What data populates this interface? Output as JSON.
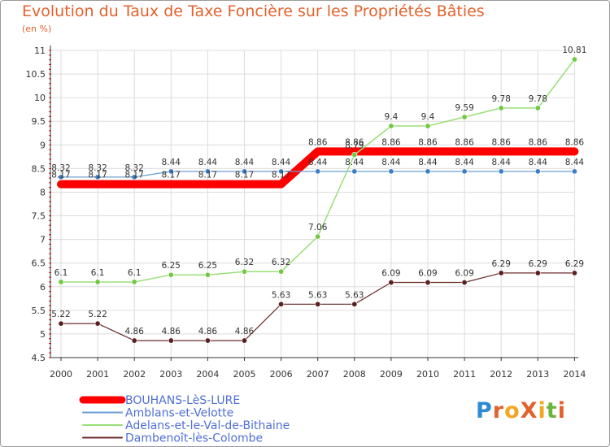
{
  "title": "Evolution du Taux de Taxe Foncière sur les Propriétés Bâties",
  "subtitle": "(en %)",
  "logo": {
    "text": "ProXiti",
    "letter_colors": [
      "#2d8bd1",
      "#e2622d",
      "#f2a622",
      "#e2622d",
      "#f2a622",
      "#6cb33f",
      "#e2622d"
    ]
  },
  "colors": {
    "title": "#e2622d",
    "axis": "#333333",
    "grid": "#dcdcdc",
    "tick_red": "#ff0000",
    "label": "#333333"
  },
  "chart_data": {
    "type": "line",
    "title": "Evolution du Taux de Taxe Foncière sur les Propriétés Bâties",
    "ylabel": "(en %)",
    "x": [
      "2000",
      "2001",
      "2002",
      "2003",
      "2004",
      "2005",
      "2006",
      "2007",
      "2008",
      "2009",
      "2010",
      "2011",
      "2012",
      "2013",
      "2014"
    ],
    "ylim": [
      4.5,
      11
    ],
    "yticks": [
      4.5,
      5,
      5.5,
      6,
      6.5,
      7,
      7.5,
      8,
      8.5,
      9,
      9.5,
      10,
      10.5,
      11
    ],
    "ytick_labels": [
      "4.5",
      "5",
      "5.5",
      "6",
      "6.5",
      "7",
      "7.5",
      "8",
      "8.5",
      "9",
      "9.5",
      "10",
      "10.5",
      "11"
    ],
    "grid": true,
    "legend_position": "bottom-left",
    "series": [
      {
        "name": "BOUHANS-LèS-LURE",
        "color": "#ff0000",
        "width": 10,
        "markers": false,
        "values": [
          8.17,
          8.17,
          8.17,
          8.17,
          8.17,
          8.17,
          8.17,
          8.86,
          8.86,
          8.86,
          8.86,
          8.86,
          8.86,
          8.86,
          8.86
        ],
        "labels": [
          "8.17",
          "8.17",
          "8.17",
          "8.17",
          "8.17",
          "8.17",
          "8.17",
          "8.86",
          "8.86",
          "8.86",
          "8.86",
          "8.86",
          "8.86",
          "8.86",
          "8.86"
        ]
      },
      {
        "name": "Amblans-et-Velotte",
        "color": "#6b9fd4",
        "marker": "#3a7fc8",
        "width": 1.2,
        "markers": true,
        "values": [
          8.32,
          8.32,
          8.32,
          8.44,
          8.44,
          8.44,
          8.44,
          8.44,
          8.44,
          8.44,
          8.44,
          8.44,
          8.44,
          8.44,
          8.44
        ],
        "labels": [
          "8.32",
          "8.32",
          "8.32",
          "8.44",
          "8.44",
          "8.44",
          "8.44",
          "8.44",
          "8.44",
          "8.44",
          "8.44",
          "8.44",
          "8.44",
          "8.44",
          "8.44"
        ]
      },
      {
        "name": "Adelans-et-le-Val-de-Bithaine",
        "color": "#9adf78",
        "marker": "#72c943",
        "width": 1.5,
        "markers": true,
        "values": [
          6.1,
          6.1,
          6.1,
          6.25,
          6.25,
          6.32,
          6.32,
          7.06,
          8.79,
          9.4,
          9.4,
          9.59,
          9.78,
          9.78,
          10.81
        ],
        "labels": [
          "6.1",
          "6.1",
          "6.1",
          "6.25",
          "6.25",
          "6.32",
          "6.32",
          "7.06",
          "8.79",
          "9.4",
          "9.4",
          "9.59",
          "9.78",
          "9.78",
          "10.81"
        ]
      },
      {
        "name": "Dambenoît-lès-Colombe",
        "color": "#6b2d2d",
        "marker": "#5a1f1f",
        "width": 1.2,
        "markers": true,
        "values": [
          5.22,
          5.22,
          4.86,
          4.86,
          4.86,
          4.86,
          5.63,
          5.63,
          5.63,
          6.09,
          6.09,
          6.09,
          6.29,
          6.29,
          6.29
        ],
        "labels": [
          "5.22",
          "5.22",
          "4.86",
          "4.86",
          "4.86",
          "4.86",
          "5.63",
          "5.63",
          "5.63",
          "6.09",
          "6.09",
          "6.09",
          "6.29",
          "6.29",
          "6.29"
        ]
      }
    ]
  }
}
